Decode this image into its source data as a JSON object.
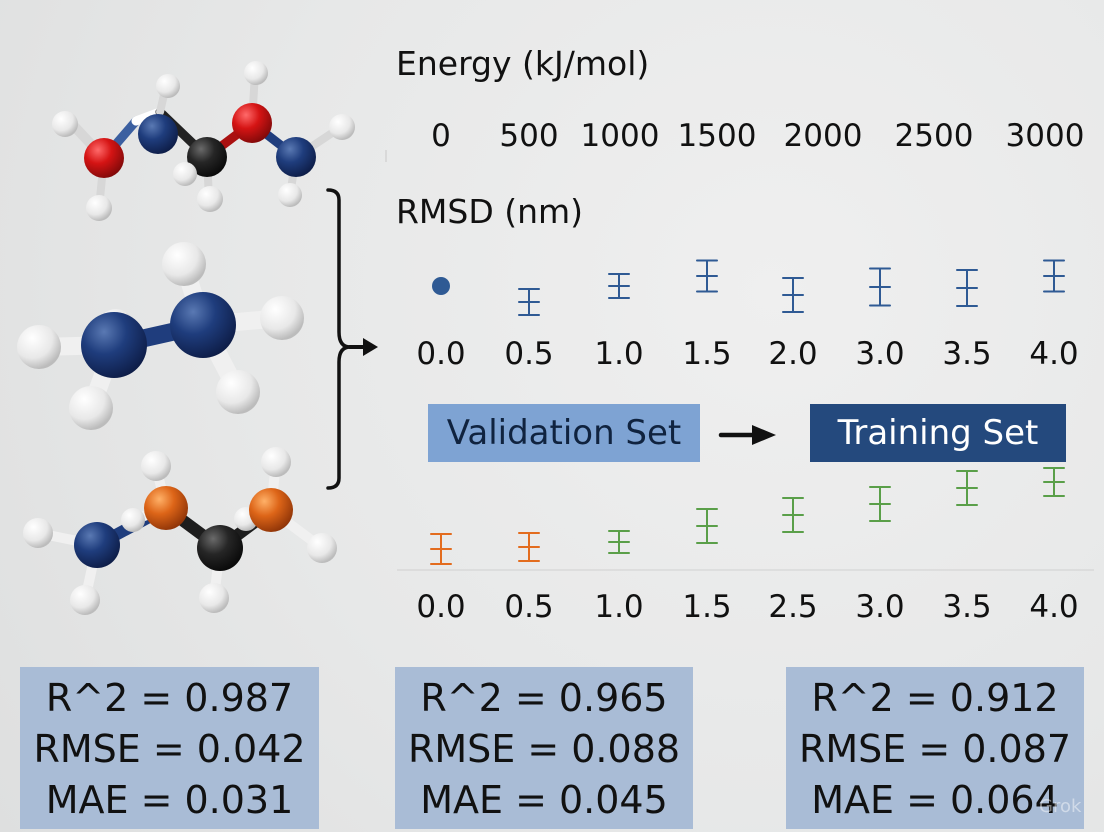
{
  "top_chart": {
    "title": "Energy (kJ/mol)",
    "energy_ticks": [
      "0",
      "500",
      "1000",
      "1500",
      "2000",
      "2500",
      "3000"
    ],
    "rmsd_label": "RMSD (nm)",
    "rmsd_ticks": [
      "0.0",
      "0.5",
      "1.0",
      "1.5",
      "2.0",
      "3.0",
      "3.5",
      "4.0"
    ]
  },
  "middle_flow": {
    "validation_label": "Validation Set",
    "training_label": "Training Set"
  },
  "bottom_chart": {
    "ticks": [
      "0.0",
      "0.5",
      "1.0",
      "1.5",
      "2.5",
      "3.0",
      "3.5",
      "4.0"
    ]
  },
  "stats": [
    {
      "r2": "R^2 = 0.987",
      "rmse": "RMSE = 0.042",
      "mae": "MAE = 0.031"
    },
    {
      "r2": "R^2 = 0.965",
      "rmse": "RMSE = 0.088",
      "mae": "MAE = 0.045"
    },
    {
      "r2": "R^2 = 0.912",
      "rmse": "RMSE = 0.087",
      "mae": "MAE = 0.064"
    }
  ],
  "watermark": "Grok",
  "colors": {
    "background": "#e6e7e7",
    "blue_marker": "#2f5a94",
    "orange_marker": "#e36c1e",
    "green_marker": "#5a9f49",
    "validation_box": "#7ea3d3",
    "training_box": "#24497d",
    "stats_box": "#a9bcd6",
    "navy_atom": "#17356f",
    "red_atom": "#d31a1a",
    "orange_atom": "#df6418",
    "black_atom": "#1d1d1d",
    "white_atom": "#f2f2f2"
  },
  "icons": {
    "arrow_main": "right-arrow",
    "arrow_secondary": "right-arrow",
    "bracket": "right-brace"
  }
}
